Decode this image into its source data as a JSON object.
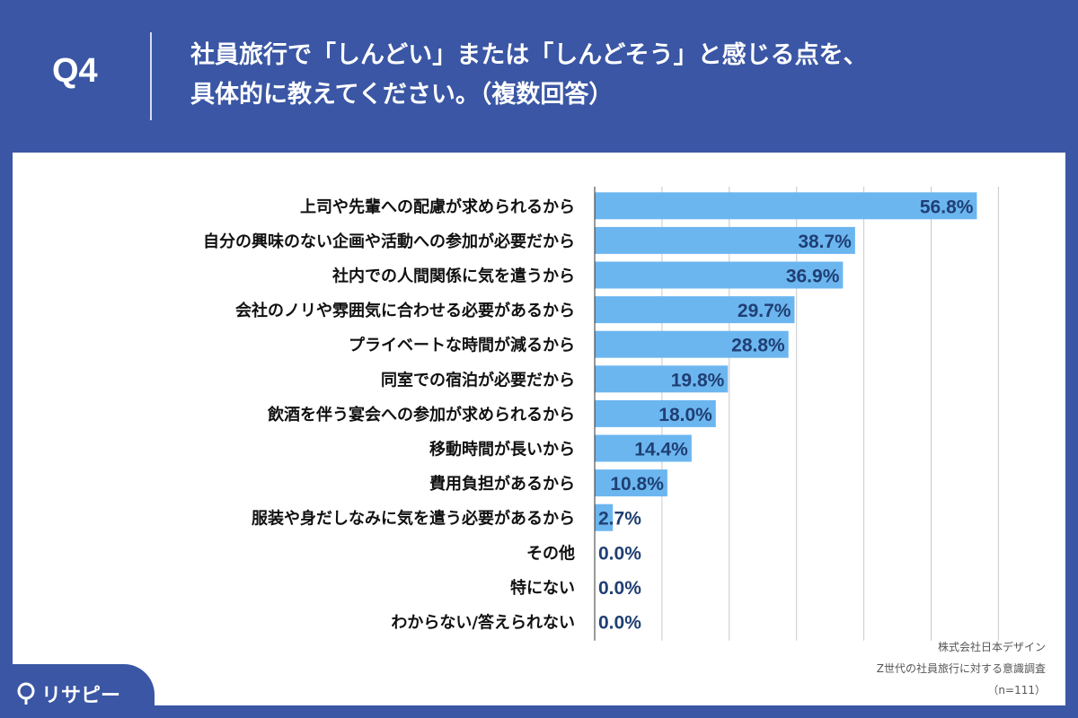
{
  "header": {
    "question_no": "Q4",
    "title_line1": "社員旅行で「しんどい」または「しんどそう」と感じる点を、",
    "title_line2": "具体的に教えてください。（複数回答）"
  },
  "colors": {
    "background": "#3a56a4",
    "bar": "#6cb6f0",
    "value_text": "#1f3f73",
    "label_text": "#111111",
    "grid": "#c8c8c8"
  },
  "chart_data": {
    "type": "bar",
    "orientation": "horizontal",
    "categories": [
      "上司や先輩への配慮が求められるから",
      "自分の興味のない企画や活動への参加が必要だから",
      "社内での人間関係に気を遣うから",
      "会社のノリや雰囲気に合わせる必要があるから",
      "プライベートな時間が減るから",
      "同室での宿泊が必要だから",
      "飲酒を伴う宴会への参加が求められるから",
      "移動時間が長いから",
      "費用負担があるから",
      "服装や身だしなみに気を遣う必要があるから",
      "その他",
      "特にない",
      "わからない/答えられない"
    ],
    "values": [
      56.8,
      38.7,
      36.9,
      29.7,
      28.8,
      19.8,
      18.0,
      14.4,
      10.8,
      2.7,
      0.0,
      0.0,
      0.0
    ],
    "value_labels": [
      "56.8%",
      "38.7%",
      "36.9%",
      "29.7%",
      "28.8%",
      "19.8%",
      "18.0%",
      "14.4%",
      "10.8%",
      "2.7%",
      "0.0%",
      "0.0%",
      "0.0%"
    ],
    "xlim": [
      0,
      60
    ],
    "grid": true
  },
  "footer": {
    "credit_company": "株式会社日本デザイン",
    "credit_survey": "Z世代の社員旅行に対する意識調査",
    "credit_n": "（n=111）"
  },
  "logo": {
    "text": "リサピー",
    "icon": "pin-icon"
  }
}
